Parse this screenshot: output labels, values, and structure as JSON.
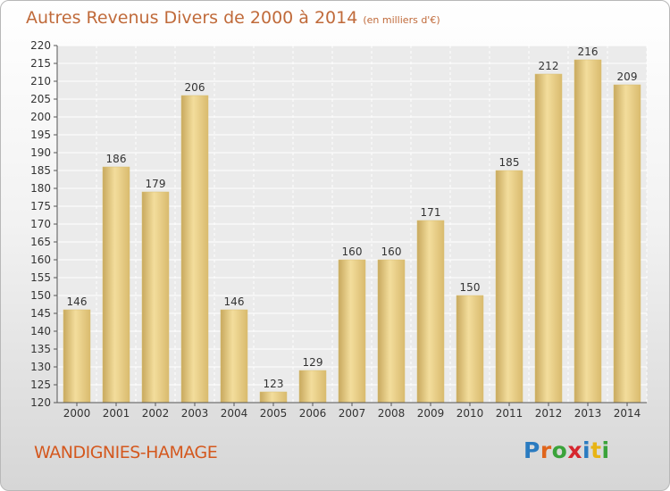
{
  "title": {
    "main": "Autres Revenus Divers de 2000 à 2014",
    "unit": "(en milliers d'€)"
  },
  "place": "WANDIGNIES-HAMAGE",
  "logo": {
    "name": "Proxiti",
    "letters": [
      "P",
      "r",
      "o",
      "x",
      "i",
      "t",
      "i"
    ],
    "colors": [
      "#2a7bc0",
      "#e0651c",
      "#3aa33a",
      "#d6262e",
      "#2a7bc0",
      "#e8b414",
      "#3aa33a"
    ]
  },
  "chart_data": {
    "type": "bar",
    "categories": [
      "2000",
      "2001",
      "2002",
      "2003",
      "2004",
      "2005",
      "2006",
      "2007",
      "2008",
      "2009",
      "2010",
      "2011",
      "2012",
      "2013",
      "2014"
    ],
    "values": [
      146,
      186,
      179,
      206,
      146,
      123,
      129,
      160,
      160,
      171,
      150,
      185,
      212,
      216,
      209
    ],
    "ylim": [
      120,
      220
    ],
    "yticks": [
      120,
      125,
      130,
      135,
      140,
      145,
      150,
      155,
      160,
      165,
      170,
      175,
      180,
      185,
      190,
      195,
      200,
      205,
      210,
      215,
      220
    ],
    "grid": true,
    "bar_color": "#e4c97f"
  }
}
